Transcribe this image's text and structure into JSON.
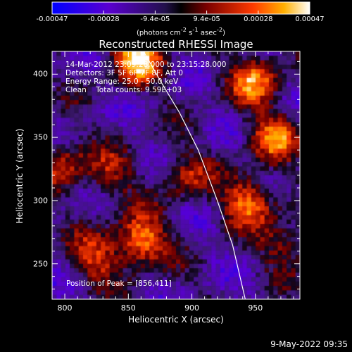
{
  "chart_data": {
    "type": "heatmap",
    "title": "Reconstructed RHESSI Image",
    "xlabel": "Heliocentric X (arcsec)",
    "ylabel": "Heliocentric Y (arcsec)",
    "xlim": [
      790,
      985
    ],
    "ylim": [
      222,
      418
    ],
    "x_ticks": [
      800,
      850,
      900,
      950
    ],
    "y_ticks": [
      250,
      300,
      350,
      400
    ],
    "colorbar": {
      "range": [
        -0.00047,
        0.00047
      ],
      "tick_labels": [
        "-0.00047",
        "-0.00028",
        "-9.4e-05",
        "9.4e-05",
        "0.00028",
        "0.00047"
      ],
      "label_line1": "(photons cm",
      "label_sup1": "-2",
      "label_mid": " s",
      "label_sup2": "-1",
      "label_mid2": " asec",
      "label_sup3": "-2",
      "label_end": ")"
    },
    "annotations": {
      "time_range": "14-Mar-2012 23:09:28.000 to 23:15:28.000",
      "detectors": "Detectors: 3F 5F 6F 7F 8F, Att 0",
      "energy_range": "Energy Range: 25.0 - 50.0 keV",
      "clean_counts": "Clean    Total counts: 9.59E+03",
      "peak": "Position of Peak = [856,411]"
    },
    "limb": {
      "x": [
        862,
        875,
        890,
        905,
        920,
        932,
        942
      ],
      "y": [
        418,
        395,
        370,
        340,
        300,
        265,
        222
      ]
    },
    "bright_regions": [
      {
        "x": 858,
        "y": 412,
        "intensity": 1.0
      },
      {
        "x": 950,
        "y": 395,
        "intensity": 0.8
      },
      {
        "x": 965,
        "y": 350,
        "intensity": 0.75
      },
      {
        "x": 945,
        "y": 300,
        "intensity": 0.85
      },
      {
        "x": 860,
        "y": 268,
        "intensity": 0.95
      },
      {
        "x": 825,
        "y": 255,
        "intensity": 0.6
      },
      {
        "x": 800,
        "y": 330,
        "intensity": 0.55
      },
      {
        "x": 895,
        "y": 320,
        "intensity": 0.5
      },
      {
        "x": 975,
        "y": 265,
        "intensity": 0.5
      },
      {
        "x": 835,
        "y": 320,
        "intensity": 0.45
      }
    ]
  },
  "footer": {
    "date": "9-May-2022 09:35"
  }
}
